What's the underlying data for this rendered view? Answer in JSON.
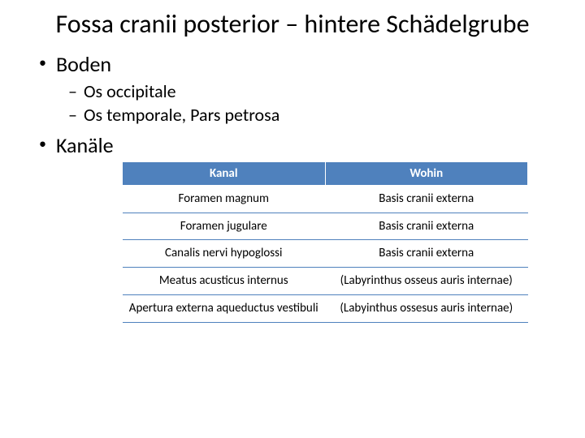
{
  "title": "Fossa cranii posterior – hintere Schädelgrube",
  "bullets": [
    {
      "label": "Boden",
      "subs": [
        "Os occipitale",
        "Os temporale, Pars petrosa"
      ]
    },
    {
      "label": "Kanäle",
      "subs": []
    }
  ],
  "table": {
    "header_bg": "#4f81bd",
    "header_fg": "#ffffff",
    "border_color": "#4f81bd",
    "columns": [
      "Kanal",
      "Wohin"
    ],
    "rows": [
      [
        "Foramen magnum",
        "Basis cranii externa"
      ],
      [
        "Foramen jugulare",
        "Basis cranii externa"
      ],
      [
        "Canalis nervi hypoglossi",
        "Basis cranii externa"
      ],
      [
        "Meatus acusticus internus",
        "(Labyrinthus osseus auris internae)"
      ],
      [
        "Apertura externa aqueductus vestibuli",
        "(Labyinthus ossesus auris internae)"
      ]
    ]
  }
}
